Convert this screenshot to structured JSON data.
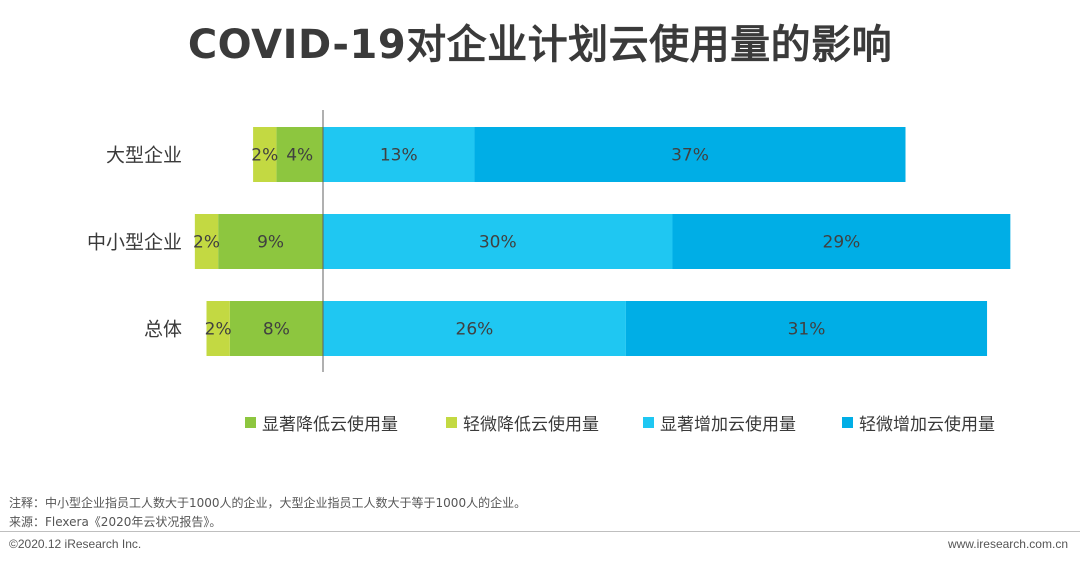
{
  "chart_data": {
    "type": "bar",
    "orientation": "horizontal-diverging",
    "title": "COVID-19对企业计划云使用量的影响",
    "categories": [
      "大型企业",
      "中小型企业",
      "总体"
    ],
    "series": [
      {
        "name": "显著降低云使用量",
        "color": "#8dc63f",
        "direction": "negative",
        "values": [
          4,
          9,
          8
        ],
        "labels": [
          "4%",
          "9%",
          "8%"
        ]
      },
      {
        "name": "轻微降低云使用量",
        "color": "#c3d942",
        "direction": "negative",
        "values": [
          2,
          2,
          2
        ],
        "labels": [
          "2%",
          "2%",
          "2%"
        ]
      },
      {
        "name": "显著增加云使用量",
        "color": "#1fc7f2",
        "direction": "positive",
        "values": [
          13,
          30,
          26
        ],
        "labels": [
          "13%",
          "30%",
          "26%"
        ]
      },
      {
        "name": "轻微增加云使用量",
        "color": "#00aee6",
        "direction": "positive",
        "values": [
          37,
          29,
          31
        ],
        "labels": [
          "37%",
          "29%",
          "31%"
        ]
      }
    ],
    "legend_order": [
      0,
      1,
      2,
      3
    ],
    "legend_position": "bottom"
  },
  "notes": {
    "note": "注释：中小型企业指员工人数大于1000人的企业，大型企业指员工人数大于等于1000人的企业。",
    "source": "来源：Flexera《2020年云状况报告》。"
  },
  "footer": {
    "copyright": "©2020.12 iResearch Inc.",
    "website": "www.iresearch.com.cn"
  }
}
